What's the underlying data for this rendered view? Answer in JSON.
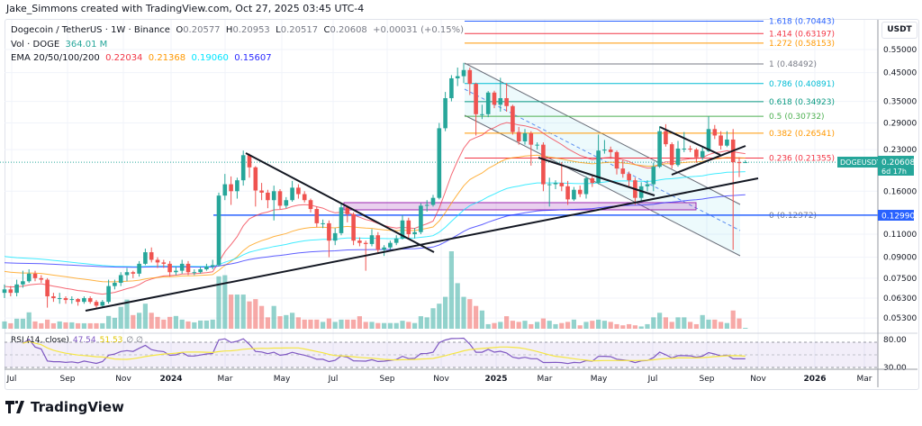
{
  "header": {
    "attribution": "Jake_Simmons created with TradingView.com, Oct 27, 2025 03:45 UTC-4"
  },
  "legend": {
    "symbol": "Dogecoin / TetherUS · 1W · Binance",
    "open_label": "O",
    "open": "0.20577",
    "high_label": "H",
    "high": "0.20953",
    "low_label": "L",
    "low": "0.20517",
    "close_label": "C",
    "close": "0.20608",
    "change": "+0.00031 (+0.15%)",
    "vol_label": "Vol · DOGE",
    "vol_value": "364.01 M",
    "ema_label": "EMA 20/50/100/200",
    "ema_values": [
      "0.22034",
      "0.21368",
      "0.19060",
      "0.15607"
    ],
    "ema_colors": [
      "#f23645",
      "#ff9800",
      "#00e5ff",
      "#2929ff"
    ]
  },
  "rsi": {
    "label": "RSI (14, close)",
    "value": "47.54",
    "ma_value": "51.53",
    "extra": "∅ ∅",
    "levels": [
      "80.00",
      "30.00"
    ],
    "line_color": "#7e57c2",
    "ma_color": "#f5e642"
  },
  "price_axis": {
    "currency": "USDT",
    "ticks": [
      "0.55000",
      "0.45000",
      "0.35000",
      "0.29000",
      "0.23000",
      "0.16000",
      "0.11000",
      "0.09000",
      "0.07500",
      "0.06300",
      "0.05300"
    ]
  },
  "last_price": {
    "symbol": "DOGEUSDT",
    "price": "0.20608",
    "countdown": "6d 17h",
    "color": "#26a69a"
  },
  "horizontal_line": {
    "price": "0.12990",
    "color": "#2962ff"
  },
  "fib": [
    {
      "level": "1.618",
      "price": "0.70443",
      "color": "#2962ff"
    },
    {
      "level": "1.414",
      "price": "0.63197",
      "color": "#f23645"
    },
    {
      "level": "1.272",
      "price": "0.58153",
      "color": "#ff9800"
    },
    {
      "level": "1",
      "price": "0.48492",
      "color": "#787b86"
    },
    {
      "level": "0.786",
      "price": "0.40891",
      "color": "#00bcd4"
    },
    {
      "level": "0.618",
      "price": "0.34923",
      "color": "#089981"
    },
    {
      "level": "0.5",
      "price": "0.30732",
      "color": "#4caf50"
    },
    {
      "level": "0.382",
      "price": "0.26541",
      "color": "#ff9800"
    },
    {
      "level": "0.236",
      "price": "0.21355",
      "color": "#f23645"
    },
    {
      "level": "0",
      "price": "0.12972",
      "color": "#787b86"
    }
  ],
  "time_axis": {
    "ticks": [
      "Jul",
      "Sep",
      "Nov",
      "2024",
      "Mar",
      "May",
      "Jul",
      "Sep",
      "Nov",
      "2025",
      "Mar",
      "May",
      "Jul",
      "Sep",
      "Nov",
      "2026",
      "Mar"
    ]
  },
  "logo": "TradingView",
  "chart_data": {
    "type": "candlestick",
    "title": "Dogecoin / TetherUS · 1W · Binance",
    "y_scale": "log",
    "ylim": [
      0.05,
      0.72
    ],
    "grid": true,
    "first_open": 0.066,
    "close": [
      0.068,
      0.066,
      0.071,
      0.073,
      0.078,
      0.075,
      0.074,
      0.064,
      0.063,
      0.063,
      0.062,
      0.0625,
      0.061,
      0.063,
      0.061,
      0.059,
      0.061,
      0.07,
      0.072,
      0.077,
      0.079,
      0.078,
      0.085,
      0.094,
      0.088,
      0.086,
      0.085,
      0.079,
      0.08,
      0.085,
      0.079,
      0.079,
      0.081,
      0.083,
      0.084,
      0.154,
      0.17,
      0.16,
      0.176,
      0.219,
      0.197,
      0.161,
      0.158,
      0.148,
      0.16,
      0.141,
      0.148,
      0.165,
      0.156,
      0.148,
      0.137,
      0.121,
      0.121,
      0.104,
      0.111,
      0.139,
      0.131,
      0.104,
      0.102,
      0.101,
      0.109,
      0.096,
      0.098,
      0.102,
      0.106,
      0.124,
      0.11,
      0.112,
      0.141,
      0.142,
      0.151,
      0.277,
      0.36,
      0.428,
      0.436,
      0.46,
      0.408,
      0.313,
      0.313,
      0.378,
      0.34,
      0.36,
      0.336,
      0.268,
      0.247,
      0.265,
      0.24,
      0.24,
      0.17,
      0.17,
      0.172,
      0.167,
      0.149,
      0.162,
      0.156,
      0.179,
      0.172,
      0.228,
      0.23,
      0.225,
      0.195,
      0.186,
      0.176,
      0.151,
      0.167,
      0.17,
      0.198,
      0.27,
      0.241,
      0.201,
      0.232,
      0.232,
      0.23,
      0.215,
      0.227,
      0.275,
      0.26,
      0.238,
      0.251,
      0.206,
      0.20577,
      0.20608
    ],
    "high": [
      0.071,
      0.07,
      0.074,
      0.08,
      0.081,
      0.08,
      0.077,
      0.075,
      0.066,
      0.066,
      0.064,
      0.064,
      0.063,
      0.064,
      0.064,
      0.062,
      0.062,
      0.074,
      0.074,
      0.079,
      0.082,
      0.08,
      0.087,
      0.097,
      0.098,
      0.09,
      0.088,
      0.087,
      0.083,
      0.088,
      0.087,
      0.081,
      0.083,
      0.085,
      0.088,
      0.158,
      0.186,
      0.182,
      0.18,
      0.228,
      0.222,
      0.199,
      0.172,
      0.162,
      0.168,
      0.163,
      0.152,
      0.175,
      0.17,
      0.16,
      0.15,
      0.14,
      0.125,
      0.124,
      0.116,
      0.144,
      0.141,
      0.133,
      0.107,
      0.104,
      0.115,
      0.112,
      0.1,
      0.104,
      0.109,
      0.13,
      0.127,
      0.116,
      0.144,
      0.148,
      0.155,
      0.29,
      0.38,
      0.44,
      0.47,
      0.49,
      0.47,
      0.412,
      0.34,
      0.383,
      0.384,
      0.43,
      0.41,
      0.34,
      0.28,
      0.275,
      0.27,
      0.245,
      0.245,
      0.18,
      0.176,
      0.206,
      0.175,
      0.166,
      0.168,
      0.182,
      0.184,
      0.262,
      0.25,
      0.236,
      0.228,
      0.21,
      0.19,
      0.18,
      0.173,
      0.176,
      0.205,
      0.282,
      0.287,
      0.245,
      0.248,
      0.268,
      0.238,
      0.233,
      0.235,
      0.307,
      0.285,
      0.27,
      0.27,
      0.275,
      0.215,
      0.20953
    ],
    "low": [
      0.063,
      0.064,
      0.064,
      0.069,
      0.072,
      0.073,
      0.072,
      0.058,
      0.061,
      0.06,
      0.06,
      0.06,
      0.059,
      0.06,
      0.06,
      0.058,
      0.058,
      0.06,
      0.068,
      0.07,
      0.073,
      0.075,
      0.076,
      0.084,
      0.086,
      0.082,
      0.082,
      0.076,
      0.077,
      0.078,
      0.077,
      0.077,
      0.078,
      0.08,
      0.081,
      0.083,
      0.148,
      0.142,
      0.15,
      0.168,
      0.18,
      0.14,
      0.148,
      0.138,
      0.124,
      0.137,
      0.138,
      0.146,
      0.15,
      0.145,
      0.133,
      0.117,
      0.116,
      0.09,
      0.1,
      0.109,
      0.122,
      0.1,
      0.099,
      0.08,
      0.099,
      0.094,
      0.091,
      0.096,
      0.1,
      0.105,
      0.106,
      0.106,
      0.11,
      0.134,
      0.14,
      0.149,
      0.27,
      0.35,
      0.4,
      0.41,
      0.37,
      0.26,
      0.3,
      0.305,
      0.33,
      0.32,
      0.32,
      0.262,
      0.24,
      0.24,
      0.2,
      0.23,
      0.16,
      0.14,
      0.163,
      0.16,
      0.142,
      0.147,
      0.152,
      0.15,
      0.166,
      0.17,
      0.222,
      0.212,
      0.185,
      0.18,
      0.165,
      0.142,
      0.145,
      0.16,
      0.16,
      0.196,
      0.236,
      0.195,
      0.198,
      0.225,
      0.225,
      0.205,
      0.21,
      0.225,
      0.252,
      0.23,
      0.235,
      0.096,
      0.181,
      0.20517
    ],
    "volume": [
      3200,
      2400,
      4400,
      4400,
      7200,
      3200,
      2400,
      4000,
      2400,
      3200,
      2800,
      2800,
      2400,
      2400,
      2400,
      2400,
      2400,
      5600,
      4800,
      9600,
      12800,
      6000,
      7000,
      11000,
      7000,
      5200,
      4000,
      5200,
      5600,
      4000,
      3200,
      2800,
      3600,
      3600,
      4000,
      23000,
      23500,
      15000,
      15000,
      15000,
      12000,
      13000,
      10000,
      5000,
      10000,
      5500,
      6000,
      7000,
      5000,
      4000,
      4000,
      4000,
      3000,
      4500,
      3000,
      4000,
      4000,
      4000,
      5500,
      3000,
      3000,
      2500,
      2500,
      2500,
      2500,
      3500,
      3000,
      2500,
      5500,
      5000,
      9000,
      11000,
      14000,
      34000,
      20000,
      14000,
      13000,
      10000,
      8000,
      2000,
      2500,
      3000,
      5500,
      3500,
      3000,
      3500,
      2000,
      3000,
      4500,
      3500,
      2000,
      2500,
      3000,
      4000,
      1500,
      3000,
      3500,
      4000,
      3500,
      3000,
      2000,
      1500,
      2000,
      1500,
      1000,
      2000,
      5000,
      7000,
      5000,
      3000,
      5000,
      5000,
      3000,
      2000,
      6000,
      4000,
      4000,
      3000,
      2500,
      8000,
      4500,
      364.01
    ]
  }
}
